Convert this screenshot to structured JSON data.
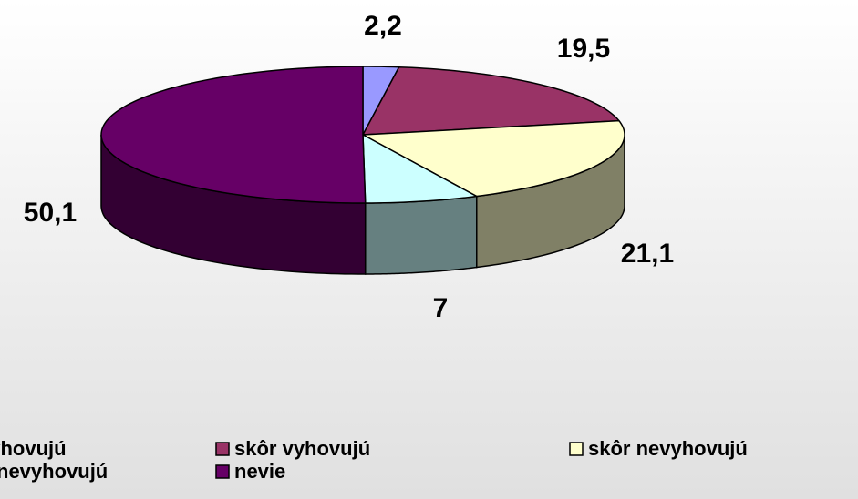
{
  "chart_data": {
    "type": "pie",
    "categories": [
      "vyhovujú",
      "skôr vyhovujú",
      "skôr nevyhovujú",
      "nevyhovujú",
      "nevie"
    ],
    "values": [
      2.2,
      19.5,
      21.1,
      7,
      50.1
    ],
    "value_labels": [
      "2,2",
      "19,5",
      "21,1",
      "7",
      "50,1"
    ],
    "colors": [
      "#9999ff",
      "#993366",
      "#ffffcc",
      "#ccffff",
      "#660066"
    ],
    "legend": "bottom"
  }
}
